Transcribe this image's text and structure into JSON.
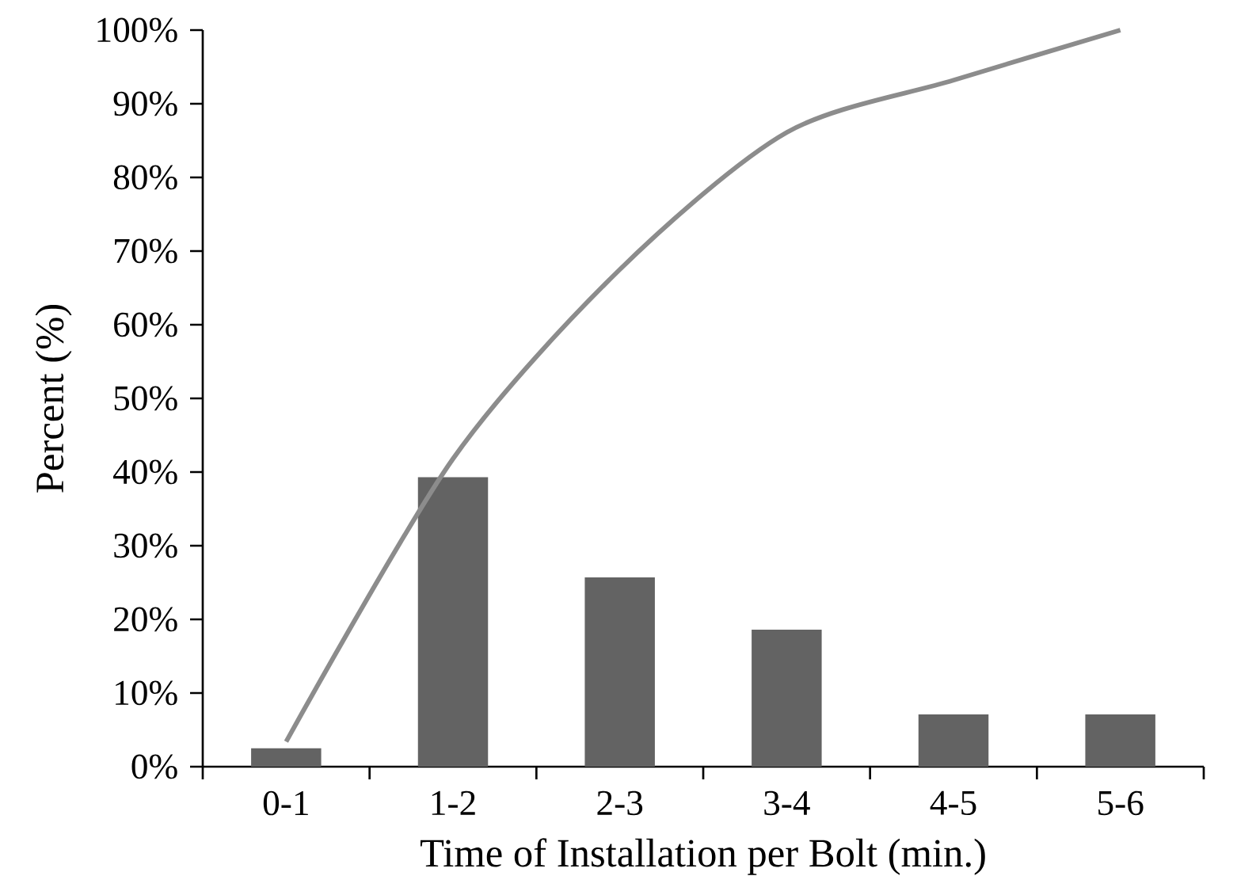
{
  "chart_data": {
    "type": "bar",
    "xlabel": "Time of Installation per Bolt (min.)",
    "ylabel": "Percent (%)",
    "categories": [
      "0-1",
      "1-2",
      "2-3",
      "3-4",
      "4-5",
      "5-6"
    ],
    "series": [
      {
        "color": "#636363",
        "values": [
          2.5,
          39.3,
          25.7,
          18.6,
          7.1,
          7.1
        ]
      },
      {
        "type": "line",
        "color": "#8c8c8c",
        "values": [
          3.4,
          41.8,
          67.5,
          86.1,
          93.2,
          100
        ]
      }
    ],
    "ylim": [
      0,
      100
    ],
    "yticks": [
      {
        "value": 0,
        "label": "0%"
      },
      {
        "value": 10,
        "label": "10%"
      },
      {
        "value": 20,
        "label": "20%"
      },
      {
        "value": 30,
        "label": "30%"
      },
      {
        "value": 40,
        "label": "40%"
      },
      {
        "value": 50,
        "label": "50%"
      },
      {
        "value": 60,
        "label": "60%"
      },
      {
        "value": 70,
        "label": "70%"
      },
      {
        "value": 80,
        "label": "80%"
      },
      {
        "value": 90,
        "label": "90%"
      },
      {
        "value": 100,
        "label": "100%"
      }
    ],
    "grid": false,
    "marker": "none",
    "line_style": "solid"
  }
}
